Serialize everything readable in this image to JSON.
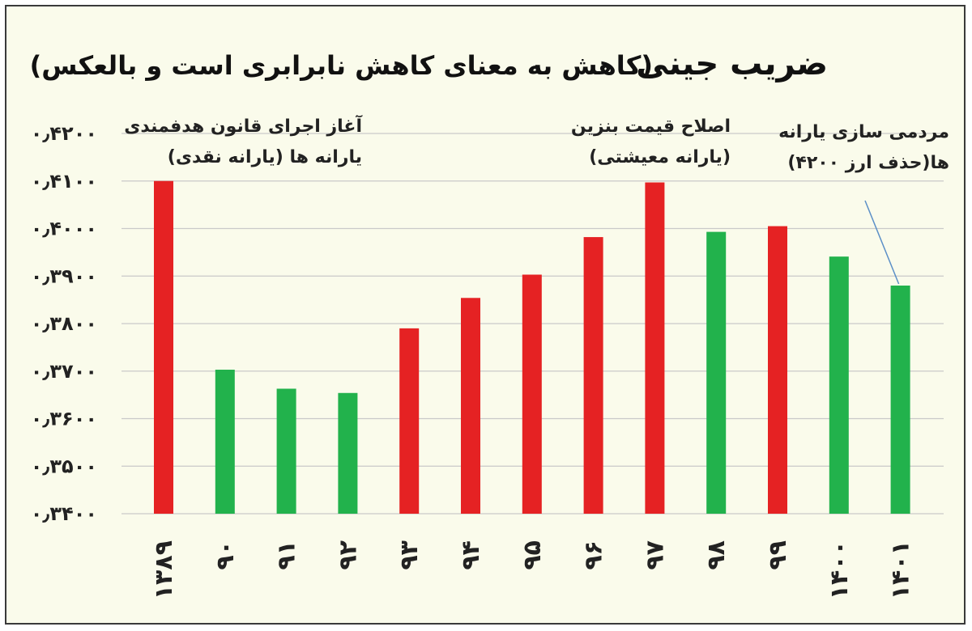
{
  "chart_data": {
    "type": "bar",
    "title": "ضریب جینی",
    "subtitle": "(کاهش به معنای کاهش نابرابری است و بالعکس)",
    "xlabel": "",
    "ylabel": "",
    "ylim": [
      0.34,
      0.42
    ],
    "yticks": [
      0.34,
      0.35,
      0.36,
      0.37,
      0.38,
      0.39,
      0.4,
      0.41,
      0.42
    ],
    "ytick_labels": [
      "۰٫۳۴۰۰",
      "۰٫۳۵۰۰",
      "۰٫۳۶۰۰",
      "۰٫۳۷۰۰",
      "۰٫۳۸۰۰",
      "۰٫۳۹۰۰",
      "۰٫۴۰۰۰",
      "۰٫۴۱۰۰",
      "۰٫۴۲۰۰"
    ],
    "categories": [
      "۱۳۸۹",
      "۹۰",
      "۹۱",
      "۹۲",
      "۹۳",
      "۹۴",
      "۹۵",
      "۹۶",
      "۹۷",
      "۹۸",
      "۹۹",
      "۱۴۰۰",
      "۱۴۰۱"
    ],
    "values": [
      0.41,
      0.3703,
      0.3663,
      0.3654,
      0.379,
      0.3854,
      0.3903,
      0.3982,
      0.4097,
      0.3993,
      0.4005,
      0.3941,
      0.388
    ],
    "bar_colors": [
      "#e52223",
      "#22b24c",
      "#22b24c",
      "#22b24c",
      "#e52223",
      "#e52223",
      "#e52223",
      "#e52223",
      "#e52223",
      "#22b24c",
      "#e52223",
      "#22b24c",
      "#22b24c"
    ],
    "grid": true,
    "annotations": [
      {
        "lines": [
          "آغاز اجرای قانون هدفمندی",
          "یارانه ها (یارانه نقدی)"
        ],
        "category": "۱۳۸۹"
      },
      {
        "lines": [
          "اصلاح قیمت بنزین",
          "(یارانه معیشتی)"
        ],
        "category": "۹۷"
      },
      {
        "lines": [
          "مردمی سازی یارانه",
          "ها(حذف ارز ۴۲۰۰)"
        ],
        "category": "۱۴۰۱"
      }
    ]
  }
}
